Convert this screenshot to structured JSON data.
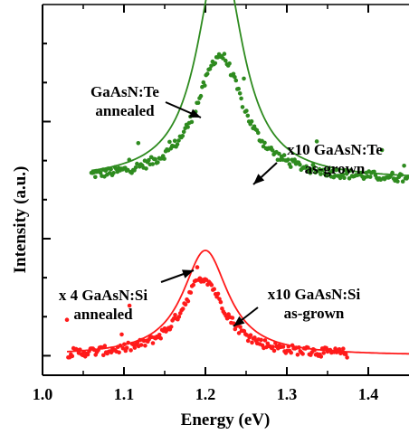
{
  "chart_data": {
    "type": "scatter",
    "xlabel": "Energy (eV)",
    "ylabel": "Intensity (a.u.)",
    "xlim": [
      1.0,
      1.45
    ],
    "ylim": [
      0,
      4.75
    ],
    "x_ticks": [
      "1.0",
      "1.1",
      "1.2",
      "1.3",
      "1.4"
    ],
    "y_ticks_labeled": false,
    "grid": false,
    "legend": "none",
    "colors": {
      "green": "#2e8b1f",
      "red": "#ff1a1a"
    },
    "series": [
      {
        "style": "line",
        "color": "green",
        "baseline": 2.5,
        "center": 1.218,
        "width": 0.033,
        "amplitude": 2.95,
        "range": [
          1.06,
          1.45
        ]
      },
      {
        "style": "scatter",
        "color": "green",
        "baseline": 2.5,
        "center": 1.218,
        "width": 0.035,
        "amplitude": 1.6,
        "range": [
          1.06,
          1.45
        ]
      },
      {
        "style": "line",
        "color": "red",
        "baseline": 0.25,
        "center": 1.2,
        "width": 0.034,
        "amplitude": 1.35,
        "range": [
          1.03,
          1.45
        ]
      },
      {
        "style": "scatter",
        "color": "red",
        "baseline": 0.25,
        "center": 1.197,
        "width": 0.032,
        "amplitude": 1.0,
        "range": [
          1.03,
          1.375
        ]
      }
    ],
    "annotations": [
      {
        "lines": [
          "GaAsN:Te",
          "annealed"
        ]
      },
      {
        "lines": [
          "x10 GaAsN:Te",
          "as-grown"
        ]
      },
      {
        "lines": [
          "x 4 GaAsN:Si",
          "annealed"
        ]
      },
      {
        "lines": [
          "x10 GaAsN:Si",
          "as-grown"
        ]
      }
    ]
  }
}
